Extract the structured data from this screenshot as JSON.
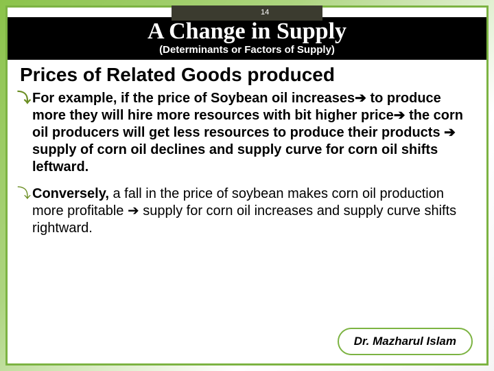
{
  "page_number": "14",
  "title": {
    "main": "A Change in Supply",
    "sub": "(Determinants or Factors of Supply)"
  },
  "heading": "Prices of Related Goods produced",
  "bullets": [
    {
      "lead": "For",
      "rest": " example, if the price of Soybean oil increases➔ to produce more they will hire more resources with bit higher price➔ the corn oil producers will get less resources to produce their products ➔ supply of corn oil declines and supply curve for corn oil shifts leftward.",
      "bold": true
    },
    {
      "lead": "Conversely,",
      "rest": " a fall in the price of soybean makes corn oil production more profitable ➔ supply for corn oil increases and supply curve shifts rightward.",
      "bold": false
    }
  ],
  "footer": "Dr. Mazharul Islam",
  "colors": {
    "accent_green": "#7cb342",
    "title_bg": "#000000",
    "page_box_bg": "#3b3b2f",
    "bullet_marker": "#6b8e23"
  }
}
